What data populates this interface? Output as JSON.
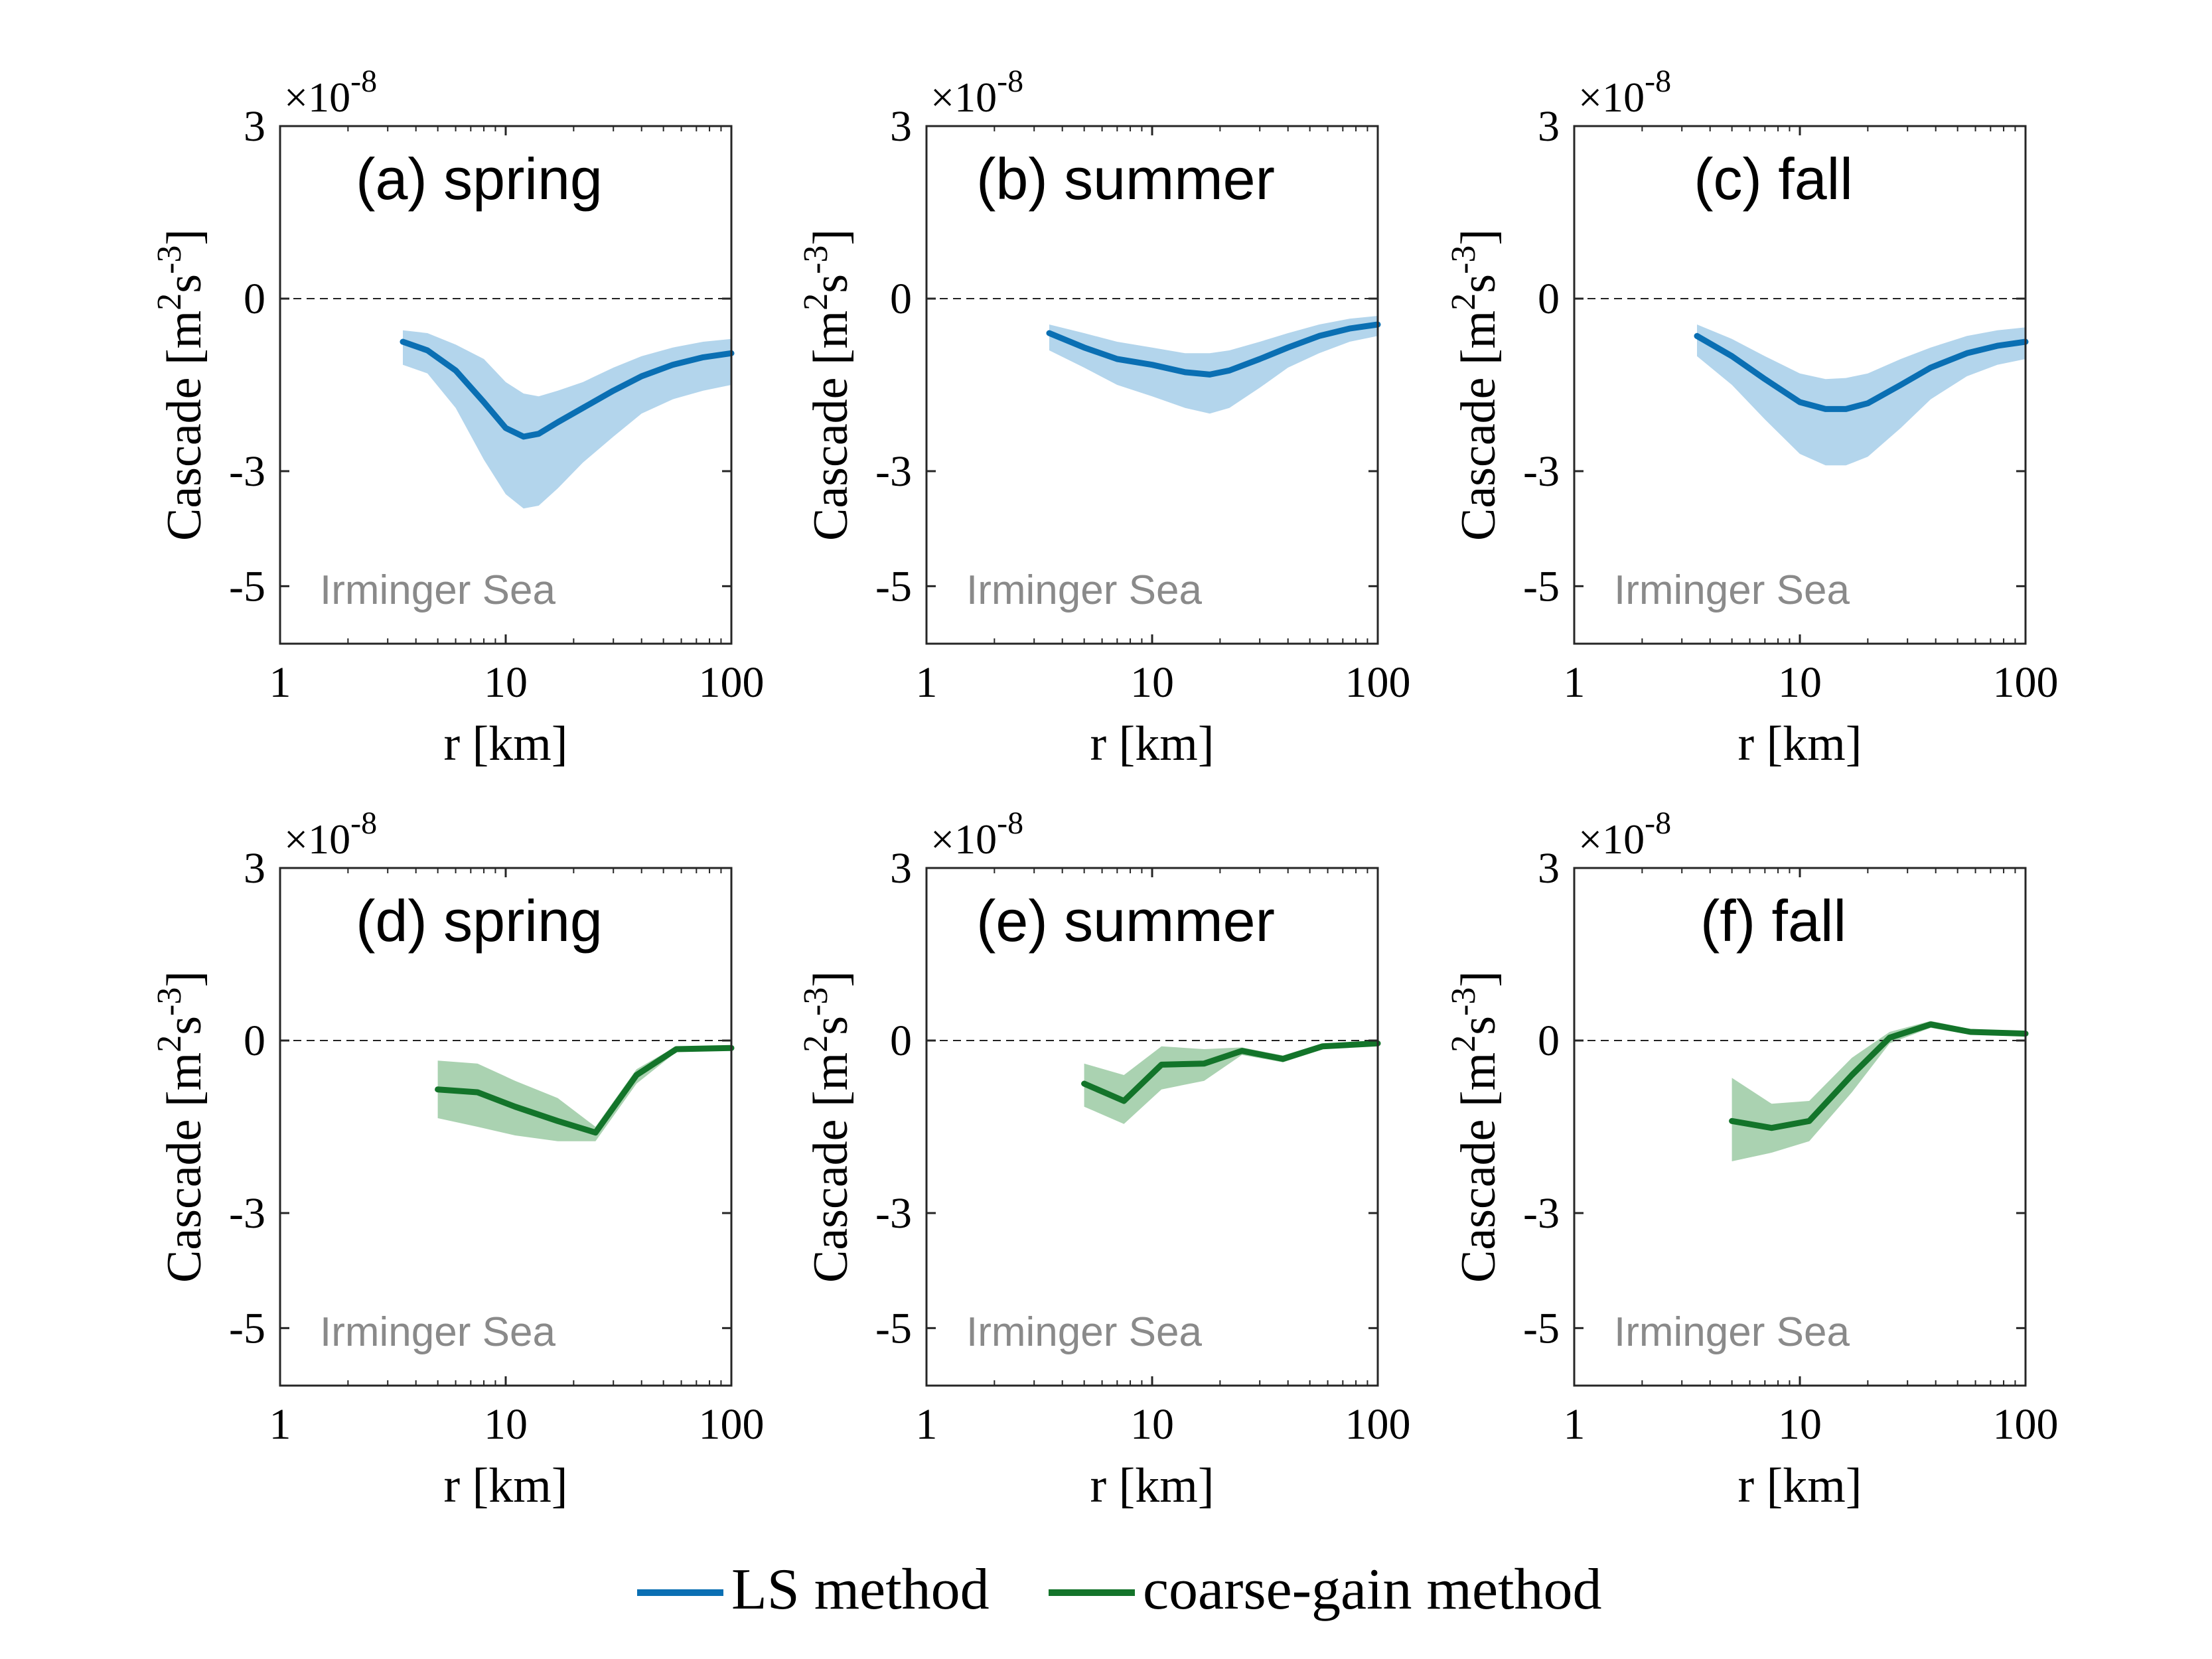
{
  "chart_data": {
    "type": "line",
    "x_scale": "log",
    "xlim": [
      1,
      100
    ],
    "ylim": [
      -6,
      3
    ],
    "x_ticks": [
      1,
      10,
      100
    ],
    "x_tick_labels": [
      "1",
      "10",
      "100"
    ],
    "y_ticks": [
      3,
      0,
      -3,
      -5
    ],
    "y_tick_labels": [
      "3",
      "0",
      "-3",
      "-5"
    ],
    "y_multiplier": "×10",
    "y_multiplier_exp": "-8",
    "xlabel": "r [km]",
    "ylabel": "Cascade [m",
    "ylabel_parts": [
      "Cascade [m",
      "2",
      "s",
      "-3",
      "]"
    ],
    "region_label": "Irminger Sea",
    "zero_line": true,
    "grid": false,
    "colors": {
      "ls_line": "#0a6fb3",
      "ls_band": "#b3d5ec",
      "cg_line": "#13742a",
      "cg_band": "#aad2b1"
    },
    "legend": [
      {
        "name": "LS method",
        "color": "#0a6fb3"
      },
      {
        "name": "coarse-gain method",
        "color": "#13742a"
      }
    ],
    "panels": [
      {
        "title": "(a) spring",
        "method": "ls",
        "x": [
          3.5,
          4.5,
          6,
          8,
          10,
          12,
          14,
          17,
          22,
          30,
          40,
          55,
          75,
          100
        ],
        "y": [
          -0.75,
          -0.9,
          -1.25,
          -1.8,
          -2.25,
          -2.4,
          -2.35,
          -2.15,
          -1.9,
          -1.6,
          -1.35,
          -1.15,
          -1.02,
          -0.95
        ],
        "lower": [
          -1.15,
          -1.3,
          -1.9,
          -2.8,
          -3.4,
          -3.65,
          -3.6,
          -3.3,
          -2.85,
          -2.4,
          -2.0,
          -1.75,
          -1.6,
          -1.5
        ],
        "upper": [
          -0.55,
          -0.6,
          -0.8,
          -1.05,
          -1.45,
          -1.65,
          -1.7,
          -1.6,
          -1.45,
          -1.2,
          -1.0,
          -0.85,
          -0.75,
          -0.7
        ]
      },
      {
        "title": "(b) summer",
        "method": "ls",
        "x": [
          3.5,
          5,
          7,
          10,
          14,
          18,
          22,
          30,
          40,
          55,
          75,
          100
        ],
        "y": [
          -0.6,
          -0.85,
          -1.05,
          -1.15,
          -1.28,
          -1.32,
          -1.25,
          -1.05,
          -0.85,
          -0.65,
          -0.52,
          -0.45
        ],
        "lower": [
          -0.9,
          -1.2,
          -1.5,
          -1.7,
          -1.9,
          -2.0,
          -1.9,
          -1.55,
          -1.2,
          -0.95,
          -0.75,
          -0.65
        ],
        "upper": [
          -0.45,
          -0.6,
          -0.75,
          -0.85,
          -0.95,
          -0.95,
          -0.9,
          -0.75,
          -0.6,
          -0.45,
          -0.35,
          -0.3
        ]
      },
      {
        "title": "(c) fall",
        "method": "ls",
        "x": [
          3.5,
          5,
          7,
          10,
          13,
          16,
          20,
          28,
          38,
          55,
          75,
          100
        ],
        "y": [
          -0.65,
          -1.0,
          -1.4,
          -1.8,
          -1.92,
          -1.92,
          -1.82,
          -1.5,
          -1.2,
          -0.95,
          -0.82,
          -0.75
        ],
        "lower": [
          -1.0,
          -1.5,
          -2.1,
          -2.7,
          -2.9,
          -2.9,
          -2.75,
          -2.25,
          -1.75,
          -1.35,
          -1.15,
          -1.05
        ],
        "upper": [
          -0.45,
          -0.7,
          -1.0,
          -1.3,
          -1.4,
          -1.38,
          -1.3,
          -1.05,
          -0.85,
          -0.65,
          -0.55,
          -0.5
        ]
      },
      {
        "title": "(d) spring",
        "method": "cg",
        "x": [
          5,
          7.5,
          11,
          17,
          25,
          38,
          57,
          100
        ],
        "y": [
          -0.85,
          -0.9,
          -1.15,
          -1.4,
          -1.6,
          -0.6,
          -0.15,
          -0.13
        ],
        "lower": [
          -1.35,
          -1.5,
          -1.65,
          -1.75,
          -1.75,
          -0.75,
          -0.2,
          -0.15
        ],
        "upper": [
          -0.35,
          -0.4,
          -0.7,
          -1.0,
          -1.5,
          -0.5,
          -0.1,
          -0.1
        ]
      },
      {
        "title": "(e) summer",
        "method": "cg",
        "x": [
          5,
          7.5,
          11,
          17,
          25,
          38,
          57,
          100
        ],
        "y": [
          -0.75,
          -1.05,
          -0.42,
          -0.4,
          -0.18,
          -0.32,
          -0.1,
          -0.05
        ],
        "lower": [
          -1.15,
          -1.45,
          -0.85,
          -0.7,
          -0.25,
          -0.38,
          -0.15,
          -0.08
        ],
        "upper": [
          -0.4,
          -0.6,
          -0.1,
          -0.15,
          -0.12,
          -0.26,
          -0.05,
          -0.02
        ]
      },
      {
        "title": "(f) fall",
        "method": "cg",
        "x": [
          5,
          7.5,
          11,
          17,
          25,
          38,
          57,
          100
        ],
        "y": [
          -1.4,
          -1.52,
          -1.4,
          -0.6,
          0.05,
          0.28,
          0.15,
          0.12
        ],
        "lower": [
          -2.1,
          -1.95,
          -1.75,
          -0.9,
          -0.05,
          0.22,
          0.1,
          0.08
        ],
        "upper": [
          -0.65,
          -1.1,
          -1.05,
          -0.3,
          0.15,
          0.34,
          0.2,
          0.16
        ]
      }
    ]
  }
}
